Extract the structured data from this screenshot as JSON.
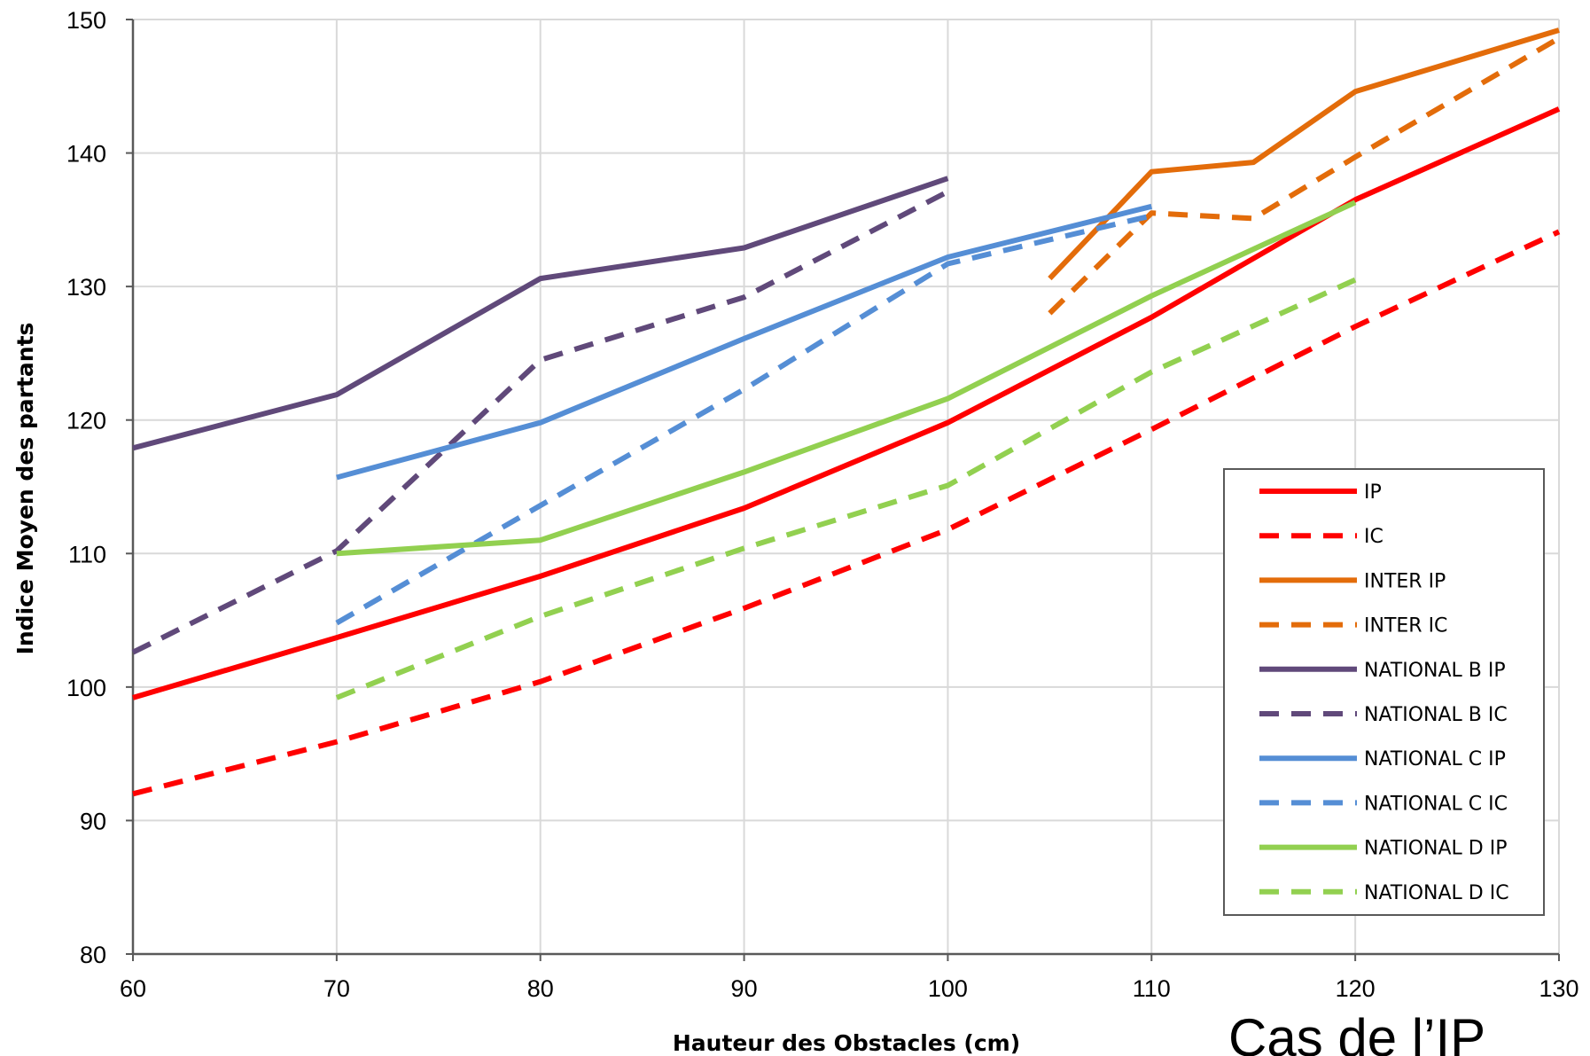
{
  "chart_data": {
    "type": "line",
    "xlabel": "Hauteur des Obstacles (cm)",
    "ylabel": "Indice Moyen des partants",
    "xlim": [
      60,
      130
    ],
    "ylim": [
      80,
      150
    ],
    "x_ticks": [
      "60",
      "70",
      "80",
      "90",
      "100",
      "110",
      "120",
      "130"
    ],
    "y_ticks": [
      "80",
      "90",
      "100",
      "110",
      "120",
      "130",
      "140",
      "150"
    ],
    "grid": true,
    "legend_position": "right",
    "annotation": "Cas de l’IP",
    "series": [
      {
        "name": "IP",
        "color": "#ff0000",
        "dashed": false,
        "points": [
          [
            60,
            99.2
          ],
          [
            70,
            103.7
          ],
          [
            80,
            108.3
          ],
          [
            90,
            113.4
          ],
          [
            100,
            119.8
          ],
          [
            110,
            127.7
          ],
          [
            120,
            136.5
          ],
          [
            130,
            143.3
          ]
        ]
      },
      {
        "name": "IC",
        "color": "#ff0000",
        "dashed": true,
        "points": [
          [
            60,
            92
          ],
          [
            70,
            95.9
          ],
          [
            80,
            100.4
          ],
          [
            90,
            105.9
          ],
          [
            100,
            111.8
          ],
          [
            110,
            119.3
          ],
          [
            120,
            127
          ],
          [
            130,
            134.1
          ]
        ]
      },
      {
        "name": "INTER IP",
        "color": "#e36c0a",
        "dashed": false,
        "points": [
          [
            105,
            130.6
          ],
          [
            110,
            138.6
          ],
          [
            115,
            139.3
          ],
          [
            120,
            144.6
          ],
          [
            130,
            149.2
          ]
        ]
      },
      {
        "name": "INTER IC",
        "color": "#e36c0a",
        "dashed": true,
        "points": [
          [
            105,
            128
          ],
          [
            110,
            135.5
          ],
          [
            115,
            135.1
          ],
          [
            120,
            139.7
          ],
          [
            130,
            148.6
          ]
        ]
      },
      {
        "name": "NATIONAL B IP",
        "color": "#60497a",
        "dashed": false,
        "points": [
          [
            60,
            117.9
          ],
          [
            70,
            121.9
          ],
          [
            80,
            130.6
          ],
          [
            90,
            132.9
          ],
          [
            100,
            138.1
          ]
        ]
      },
      {
        "name": "NATIONAL B IC",
        "color": "#60497a",
        "dashed": true,
        "points": [
          [
            60,
            102.6
          ],
          [
            70,
            110.2
          ],
          [
            80,
            124.5
          ],
          [
            90,
            129.2
          ],
          [
            100,
            137.1
          ]
        ]
      },
      {
        "name": "NATIONAL C IP",
        "color": "#558ed5",
        "dashed": false,
        "points": [
          [
            70,
            115.7
          ],
          [
            80,
            119.8
          ],
          [
            90,
            126.1
          ],
          [
            100,
            132.2
          ],
          [
            110,
            136
          ]
        ]
      },
      {
        "name": "NATIONAL C IC",
        "color": "#558ed5",
        "dashed": true,
        "points": [
          [
            70,
            104.8
          ],
          [
            80,
            113.6
          ],
          [
            90,
            122.3
          ],
          [
            100,
            131.7
          ],
          [
            110,
            135.3
          ]
        ]
      },
      {
        "name": "NATIONAL D IP",
        "color": "#92d050",
        "dashed": false,
        "points": [
          [
            70,
            110
          ],
          [
            80,
            111
          ],
          [
            90,
            116.1
          ],
          [
            100,
            121.6
          ],
          [
            110,
            129.3
          ],
          [
            120,
            136.3
          ]
        ]
      },
      {
        "name": "NATIONAL D IC",
        "color": "#92d050",
        "dashed": true,
        "points": [
          [
            70,
            99.2
          ],
          [
            80,
            105.3
          ],
          [
            90,
            110.4
          ],
          [
            100,
            115.1
          ],
          [
            110,
            123.6
          ],
          [
            120,
            130.5
          ]
        ]
      }
    ]
  }
}
